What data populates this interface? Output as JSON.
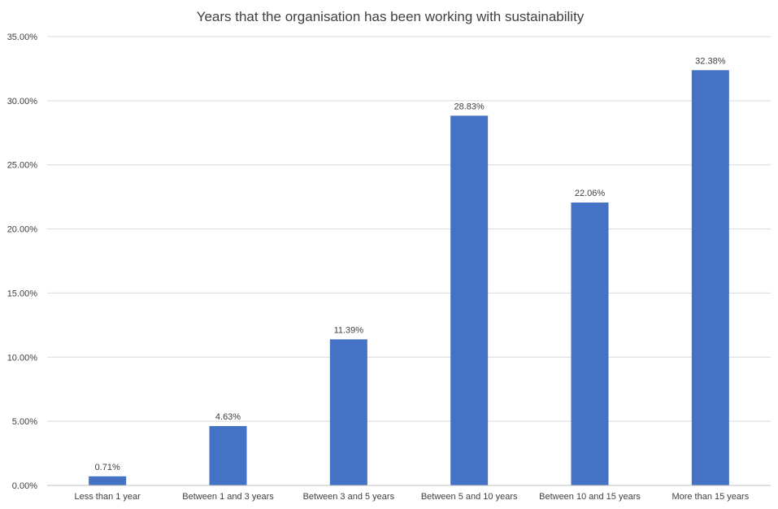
{
  "chart_data": {
    "type": "bar",
    "title": "Years that the organisation has been working with sustainability",
    "xlabel": "",
    "ylabel": "",
    "categories": [
      "Less than 1 year",
      "Between 1 and 3 years",
      "Between 3 and 5 years",
      "Between 5 and 10 years",
      "Between 10 and 15 years",
      "More than 15 years"
    ],
    "values": [
      0.71,
      4.63,
      11.39,
      28.83,
      22.06,
      32.38
    ],
    "data_labels": [
      "0.71%",
      "4.63%",
      "11.39%",
      "28.83%",
      "22.06%",
      "32.38%"
    ],
    "ylim": [
      0,
      35
    ],
    "yticks": [
      0,
      5,
      10,
      15,
      20,
      25,
      30,
      35
    ],
    "ytick_labels": [
      "0.00%",
      "5.00%",
      "10.00%",
      "15.00%",
      "20.00%",
      "25.00%",
      "30.00%",
      "35.00%"
    ],
    "grid": true,
    "legend": "none",
    "bar_color": "#4472C4"
  }
}
